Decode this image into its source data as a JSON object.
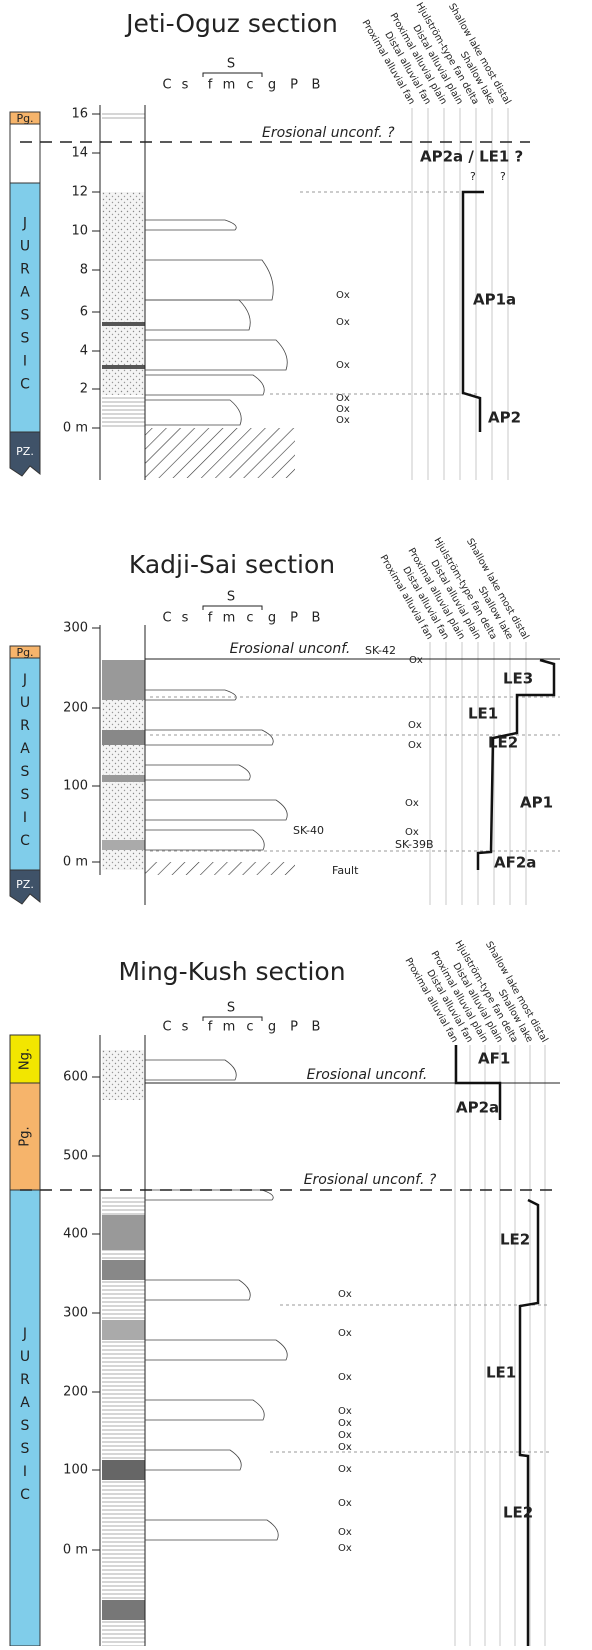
{
  "sections": [
    {
      "title": "Jeti-Oguz section",
      "grain_size": {
        "group": "S",
        "classes": [
          "C",
          "s",
          "f",
          "m",
          "c",
          "g",
          "P",
          "B"
        ]
      },
      "facies": [
        "Shallow lake most distal",
        "Shallow lake",
        "Hjulström-type fan delta",
        "Distal alluvial plain",
        "Proximal alluvial plain",
        "Distal alluvial fan",
        "Proximal alluvial fan"
      ],
      "depth_labels": [
        "16",
        "14",
        "12",
        "10",
        "8",
        "6",
        "4",
        "2",
        "0 m"
      ],
      "periods": [
        "Pg.",
        "JURASSIC",
        "PZ."
      ],
      "annotations": [
        "Erosional unconf. ?",
        "?",
        "?"
      ],
      "ox": [
        "Ox",
        "Ox",
        "Ox",
        "Ox",
        "Ox",
        "Ox"
      ],
      "zones": [
        "AP2a / LE1 ?",
        "AP1a",
        "AP2"
      ]
    },
    {
      "title": "Kadji-Sai section",
      "grain_size": {
        "group": "S",
        "classes": [
          "C",
          "s",
          "f",
          "m",
          "c",
          "g",
          "P",
          "B"
        ]
      },
      "facies": [
        "Shallow lake most distal",
        "Shallow lake",
        "Hjulström-type fan delta",
        "Distal alluvial plain",
        "Proximal alluvial plain",
        "Distal alluvial fan",
        "Proximal alluvial fan"
      ],
      "depth_labels": [
        "300",
        "200",
        "100",
        "0 m"
      ],
      "periods": [
        "Pg.",
        "JURASSIC",
        "PZ."
      ],
      "annotations": [
        "Erosional unconf.",
        "SK-42",
        "SK-40",
        "SK-39B",
        "Fault"
      ],
      "ox": [
        "Ox",
        "Ox",
        "Ox",
        "Ox",
        "Ox"
      ],
      "zones": [
        "LE3",
        "LE1",
        "LE2",
        "AP1",
        "AF2a"
      ]
    },
    {
      "title": "Ming-Kush section",
      "grain_size": {
        "group": "S",
        "classes": [
          "C",
          "s",
          "f",
          "m",
          "c",
          "g",
          "P",
          "B"
        ]
      },
      "facies": [
        "Shallow lake most distal",
        "Shallow lake",
        "Hjulström-type fan delta",
        "Distal alluvial plain",
        "Proximal alluvial plain",
        "Distal alluvial fan",
        "Proximal alluvial fan"
      ],
      "depth_labels": [
        "600",
        "500",
        "400",
        "300",
        "200",
        "100",
        "0 m"
      ],
      "periods": [
        "Ng.",
        "Pg.",
        "JURASSIC"
      ],
      "annotations": [
        "Erosional unconf.",
        "Erosional unconf. ?"
      ],
      "ox": [
        "Ox",
        "Ox",
        "Ox",
        "Ox",
        "Ox",
        "Ox",
        "Ox",
        "Ox",
        "Ox",
        "Ox",
        "Ox"
      ],
      "zones": [
        "AF1",
        "AP2a",
        "LE2",
        "LE1",
        "LE2"
      ]
    }
  ]
}
